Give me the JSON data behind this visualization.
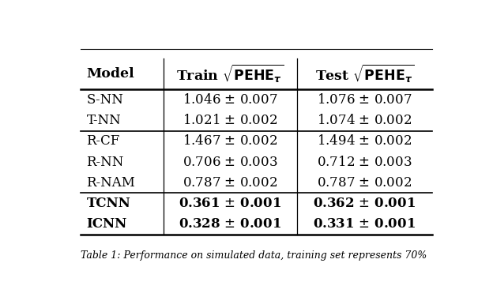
{
  "col_headers": [
    "Model",
    "Train $\\sqrt{\\mathbf{PEHE}_{\\boldsymbol{\\tau}}}$",
    "Test $\\sqrt{\\mathbf{PEHE}_{\\boldsymbol{\\tau}}}$"
  ],
  "groups": [
    {
      "rows": [
        [
          "S-NN",
          "1.046 $\\pm$ 0.007",
          "1.076 $\\pm$ 0.007"
        ],
        [
          "T-NN",
          "1.021 $\\pm$ 0.002",
          "1.074 $\\pm$ 0.002"
        ]
      ],
      "bold": false
    },
    {
      "rows": [
        [
          "R-CF",
          "1.467 $\\pm$ 0.002",
          "1.494 $\\pm$ 0.002"
        ],
        [
          "R-NN",
          "0.706 $\\pm$ 0.003",
          "0.712 $\\pm$ 0.003"
        ],
        [
          "R-NAM",
          "0.787 $\\pm$ 0.002",
          "0.787 $\\pm$ 0.002"
        ]
      ],
      "bold": false
    },
    {
      "rows": [
        [
          "TCNN",
          "\\textbf{0.361} $\\pm$ \\textbf{0.001}",
          "\\textbf{0.362} $\\pm$ \\textbf{0.001}"
        ],
        [
          "ICNN",
          "\\textbf{0.328} $\\pm$ \\textbf{0.001}",
          "\\textbf{0.331} $\\pm$ \\textbf{0.001}"
        ]
      ],
      "bold": true
    }
  ],
  "figsize": [
    6.24,
    3.76
  ],
  "dpi": 100,
  "bg_color": "#ffffff",
  "text_color": "#000000",
  "header_fontsize": 12.5,
  "cell_fontsize": 12,
  "caption": "Table 1: Performance on simulated data, training set represents 70%"
}
